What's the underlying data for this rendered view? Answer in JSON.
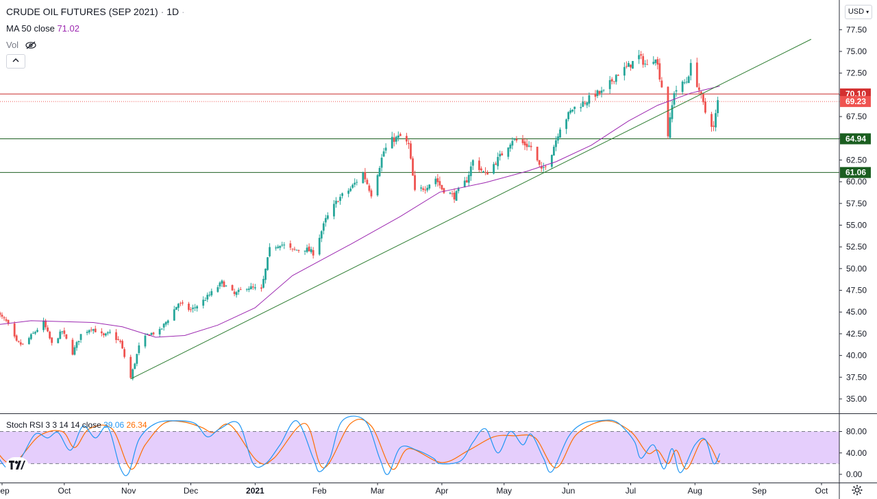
{
  "header": {
    "title": "CRUDE OIL FUTURES (SEP 2021)",
    "interval": "1D",
    "ma_label": "MA 50 close",
    "ma_value": "71.02",
    "vol_label": "Vol",
    "currency": "USD"
  },
  "colors": {
    "up": "#26a69a",
    "down": "#ef5350",
    "ma": "#9c27b0",
    "support": "#1b5e20",
    "resistance": "#c62828",
    "trendline": "#2e7d32",
    "stoch_k": "#2196f3",
    "stoch_d": "#ff6d00",
    "stoch_band": "#e1c6fb"
  },
  "chart_data": [
    {
      "type": "candlestick",
      "title": "CRUDE OIL FUTURES (SEP 2021) · 1D",
      "xaxis_ticks": [
        "Sep",
        "Oct",
        "Nov",
        "Dec",
        "2021",
        "Feb",
        "Mar",
        "Apr",
        "May",
        "Jun",
        "Jul",
        "Aug",
        "Sep",
        "Oct"
      ],
      "yaxis_ticks": [
        "77.50",
        "75.00",
        "72.50",
        "70.00",
        "67.50",
        "65.00",
        "62.50",
        "60.00",
        "57.50",
        "55.00",
        "52.50",
        "50.00",
        "47.50",
        "45.00",
        "42.50",
        "40.00",
        "37.50",
        "35.00"
      ],
      "ylim": [
        33.5,
        79
      ],
      "price_labels": [
        {
          "value": 70.1,
          "text": "70.10",
          "kind": "resistance"
        },
        {
          "value": 69.23,
          "text": "69.23",
          "kind": "last"
        },
        {
          "value": 64.94,
          "text": "64.94",
          "kind": "support"
        },
        {
          "value": 61.06,
          "text": "61.06",
          "kind": "support"
        }
      ],
      "trendline": {
        "from": {
          "date": "2020-11-02",
          "price": 37.3
        },
        "to": {
          "date": "2021-09-26",
          "price": 76.4
        }
      },
      "close_path": [
        [
          "2020-08-28",
          45.2
        ],
        [
          "2020-09-03",
          43.9
        ],
        [
          "2020-09-08",
          41.5
        ],
        [
          "2020-09-11",
          41.2
        ],
        [
          "2020-09-16",
          42.5
        ],
        [
          "2020-09-21",
          43.8
        ],
        [
          "2020-09-25",
          41.3
        ],
        [
          "2020-09-30",
          42.8
        ],
        [
          "2020-10-05",
          40.3
        ],
        [
          "2020-10-09",
          42.4
        ],
        [
          "2020-10-14",
          43.2
        ],
        [
          "2020-10-20",
          42.2
        ],
        [
          "2020-10-23",
          42.6
        ],
        [
          "2020-10-28",
          41.5
        ],
        [
          "2020-11-02",
          37.4
        ],
        [
          "2020-11-06",
          41.0
        ],
        [
          "2020-11-10",
          42.4
        ],
        [
          "2020-11-16",
          42.8
        ],
        [
          "2020-11-20",
          44.2
        ],
        [
          "2020-11-25",
          46.0
        ],
        [
          "2020-12-01",
          45.2
        ],
        [
          "2020-12-07",
          46.3
        ],
        [
          "2020-12-11",
          47.2
        ],
        [
          "2020-12-16",
          48.4
        ],
        [
          "2020-12-22",
          47.0
        ],
        [
          "2020-12-28",
          47.9
        ],
        [
          "2021-01-04",
          47.5
        ],
        [
          "2021-01-08",
          52.2
        ],
        [
          "2021-01-13",
          52.9
        ],
        [
          "2021-01-19",
          52.1
        ],
        [
          "2021-01-25",
          52.3
        ],
        [
          "2021-01-29",
          51.8
        ],
        [
          "2021-02-04",
          55.6
        ],
        [
          "2021-02-10",
          58.0
        ],
        [
          "2021-02-16",
          59.2
        ],
        [
          "2021-02-22",
          61.0
        ],
        [
          "2021-02-26",
          58.6
        ],
        [
          "2021-03-04",
          63.5
        ],
        [
          "2021-03-08",
          64.8
        ],
        [
          "2021-03-12",
          65.2
        ],
        [
          "2021-03-16",
          64.2
        ],
        [
          "2021-03-19",
          58.8
        ],
        [
          "2021-03-24",
          59.4
        ],
        [
          "2021-03-29",
          60.4
        ],
        [
          "2021-04-01",
          59.2
        ],
        [
          "2021-04-07",
          58.3
        ],
        [
          "2021-04-13",
          60.2
        ],
        [
          "2021-04-16",
          62.4
        ],
        [
          "2021-04-22",
          60.8
        ],
        [
          "2021-04-27",
          62.3
        ],
        [
          "2021-04-30",
          63.2
        ],
        [
          "2021-05-05",
          64.9
        ],
        [
          "2021-05-10",
          64.4
        ],
        [
          "2021-05-14",
          64.0
        ],
        [
          "2021-05-19",
          61.2
        ],
        [
          "2021-05-24",
          63.4
        ],
        [
          "2021-05-28",
          66.3
        ],
        [
          "2021-06-03",
          68.4
        ],
        [
          "2021-06-09",
          69.2
        ],
        [
          "2021-06-14",
          70.1
        ],
        [
          "2021-06-18",
          70.3
        ],
        [
          "2021-06-24",
          72.3
        ],
        [
          "2021-06-30",
          73.3
        ],
        [
          "2021-07-05",
          74.4
        ],
        [
          "2021-07-09",
          73.3
        ],
        [
          "2021-07-13",
          74.5
        ],
        [
          "2021-07-16",
          71.0
        ],
        [
          "2021-07-19",
          65.4
        ],
        [
          "2021-07-22",
          70.4
        ],
        [
          "2021-07-28",
          71.6
        ],
        [
          "2021-07-30",
          73.3
        ],
        [
          "2021-08-03",
          70.6
        ],
        [
          "2021-08-06",
          68.0
        ],
        [
          "2021-08-10",
          66.2
        ],
        [
          "2021-08-12",
          69.2
        ]
      ],
      "ma_path": [
        [
          "2020-08-28",
          43.5
        ],
        [
          "2020-09-15",
          44.0
        ],
        [
          "2020-10-15",
          43.8
        ],
        [
          "2020-10-29",
          43.3
        ],
        [
          "2020-11-14",
          42.1
        ],
        [
          "2020-11-28",
          42.3
        ],
        [
          "2020-12-14",
          43.5
        ],
        [
          "2021-01-01",
          45.5
        ],
        [
          "2021-01-19",
          49.2
        ],
        [
          "2021-02-16",
          52.8
        ],
        [
          "2021-03-12",
          56.0
        ],
        [
          "2021-03-31",
          58.8
        ],
        [
          "2021-04-22",
          59.9
        ],
        [
          "2021-05-12",
          61.2
        ],
        [
          "2021-05-26",
          62.3
        ],
        [
          "2021-06-12",
          64.2
        ],
        [
          "2021-06-30",
          67.0
        ],
        [
          "2021-07-14",
          68.8
        ],
        [
          "2021-07-30",
          70.2
        ],
        [
          "2021-08-13",
          71.0
        ]
      ]
    },
    {
      "type": "line",
      "title": "Stoch RSI 3 3 14 14 close",
      "legend": [
        {
          "name": "K",
          "value": "39.06"
        },
        {
          "name": "D",
          "value": "26.34"
        }
      ],
      "yaxis_ticks": [
        "80.00",
        "40.00",
        "0.00"
      ],
      "ylim": [
        -10,
        105
      ],
      "band": [
        20,
        80
      ],
      "k_path": [
        [
          "2020-08-28",
          45
        ],
        [
          "2020-09-04",
          10
        ],
        [
          "2020-09-10",
          30
        ],
        [
          "2020-09-17",
          75
        ],
        [
          "2020-09-23",
          68
        ],
        [
          "2020-09-28",
          78
        ],
        [
          "2020-10-04",
          45
        ],
        [
          "2020-10-10",
          90
        ],
        [
          "2020-10-16",
          68
        ],
        [
          "2020-10-22",
          88
        ],
        [
          "2020-10-28",
          12
        ],
        [
          "2020-11-01",
          2
        ],
        [
          "2020-11-06",
          65
        ],
        [
          "2020-11-14",
          95
        ],
        [
          "2020-11-24",
          100
        ],
        [
          "2020-12-03",
          95
        ],
        [
          "2020-12-09",
          70
        ],
        [
          "2020-12-15",
          85
        ],
        [
          "2020-12-24",
          95
        ],
        [
          "2020-12-31",
          20
        ],
        [
          "2021-01-06",
          20
        ],
        [
          "2021-01-13",
          55
        ],
        [
          "2021-01-21",
          100
        ],
        [
          "2021-01-29",
          30
        ],
        [
          "2021-02-01",
          5
        ],
        [
          "2021-02-06",
          30
        ],
        [
          "2021-02-12",
          100
        ],
        [
          "2021-02-23",
          100
        ],
        [
          "2021-03-02",
          30
        ],
        [
          "2021-03-06",
          0
        ],
        [
          "2021-03-12",
          50
        ],
        [
          "2021-03-20",
          45
        ],
        [
          "2021-03-28",
          30
        ],
        [
          "2021-03-31",
          20
        ],
        [
          "2021-04-10",
          25
        ],
        [
          "2021-04-16",
          60
        ],
        [
          "2021-04-22",
          85
        ],
        [
          "2021-04-28",
          40
        ],
        [
          "2021-05-04",
          80
        ],
        [
          "2021-05-10",
          55
        ],
        [
          "2021-05-14",
          75
        ],
        [
          "2021-05-20",
          30
        ],
        [
          "2021-05-24",
          5
        ],
        [
          "2021-06-01",
          70
        ],
        [
          "2021-06-08",
          95
        ],
        [
          "2021-06-16",
          100
        ],
        [
          "2021-06-23",
          100
        ],
        [
          "2021-06-28",
          85
        ],
        [
          "2021-07-03",
          60
        ],
        [
          "2021-07-06",
          30
        ],
        [
          "2021-07-12",
          55
        ],
        [
          "2021-07-17",
          10
        ],
        [
          "2021-07-21",
          48
        ],
        [
          "2021-07-25",
          3
        ],
        [
          "2021-08-01",
          55
        ],
        [
          "2021-08-06",
          65
        ],
        [
          "2021-08-10",
          20
        ],
        [
          "2021-08-13",
          39
        ]
      ],
      "d_path": [
        [
          "2020-08-28",
          50
        ],
        [
          "2020-09-06",
          20
        ],
        [
          "2020-09-19",
          72
        ],
        [
          "2020-09-30",
          80
        ],
        [
          "2020-10-06",
          50
        ],
        [
          "2020-10-13",
          85
        ],
        [
          "2020-10-24",
          85
        ],
        [
          "2020-11-02",
          10
        ],
        [
          "2020-11-09",
          55
        ],
        [
          "2020-11-18",
          95
        ],
        [
          "2020-11-27",
          98
        ],
        [
          "2020-12-06",
          88
        ],
        [
          "2020-12-12",
          78
        ],
        [
          "2020-12-20",
          92
        ],
        [
          "2021-01-02",
          25
        ],
        [
          "2021-01-10",
          30
        ],
        [
          "2021-01-25",
          95
        ],
        [
          "2021-02-03",
          12
        ],
        [
          "2021-02-16",
          95
        ],
        [
          "2021-02-26",
          90
        ],
        [
          "2021-03-08",
          10
        ],
        [
          "2021-03-16",
          48
        ],
        [
          "2021-04-01",
          22
        ],
        [
          "2021-04-14",
          45
        ],
        [
          "2021-04-26",
          70
        ],
        [
          "2021-05-06",
          72
        ],
        [
          "2021-05-16",
          68
        ],
        [
          "2021-05-26",
          12
        ],
        [
          "2021-06-05",
          75
        ],
        [
          "2021-06-19",
          100
        ],
        [
          "2021-07-01",
          80
        ],
        [
          "2021-07-09",
          40
        ],
        [
          "2021-07-14",
          45
        ],
        [
          "2021-07-19",
          20
        ],
        [
          "2021-07-23",
          45
        ],
        [
          "2021-07-28",
          10
        ],
        [
          "2021-08-04",
          62
        ],
        [
          "2021-08-08",
          55
        ],
        [
          "2021-08-12",
          25
        ],
        [
          "2021-08-13",
          26
        ]
      ]
    }
  ]
}
